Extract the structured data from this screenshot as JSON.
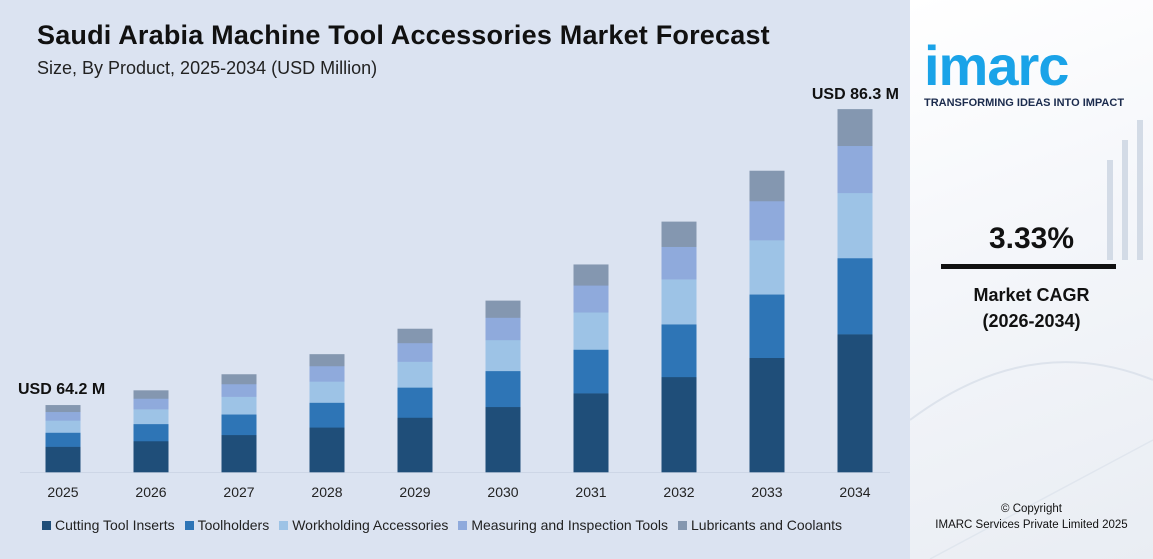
{
  "chart_data": {
    "type": "bar",
    "stacked": true,
    "title": "Saudi Arabia Machine Tool Accessories Market Forecast",
    "subtitle": "Size, By Product, 2025-2034 (USD Million)",
    "categories": [
      "2025",
      "2026",
      "2027",
      "2028",
      "2029",
      "2030",
      "2031",
      "2032",
      "2033",
      "2034"
    ],
    "totals": [
      64.2,
      65.3,
      66.5,
      68.0,
      69.9,
      72.0,
      74.7,
      77.9,
      81.7,
      86.3
    ],
    "series": [
      {
        "name": "Cutting Tool Inserts",
        "color": "#1f4e79",
        "values": [
          24.4,
          24.8,
          25.3,
          25.8,
          26.6,
          27.4,
          28.4,
          29.6,
          31.0,
          32.8
        ]
      },
      {
        "name": "Toolholders",
        "color": "#2e75b6",
        "values": [
          13.5,
          13.7,
          14.0,
          14.3,
          14.7,
          15.1,
          15.7,
          16.4,
          17.2,
          18.1
        ]
      },
      {
        "name": "Workholding Accessories",
        "color": "#9dc3e6",
        "values": [
          11.6,
          11.8,
          12.0,
          12.2,
          12.6,
          13.0,
          13.4,
          14.0,
          14.7,
          15.5
        ]
      },
      {
        "name": "Measuring and Inspection Tools",
        "color": "#8faadc",
        "values": [
          8.3,
          8.5,
          8.6,
          8.9,
          9.1,
          9.4,
          9.7,
          10.1,
          10.6,
          11.2
        ]
      },
      {
        "name": "Lubricants and Coolants",
        "color": "#8497b0",
        "values": [
          6.4,
          6.5,
          6.6,
          6.8,
          6.9,
          7.1,
          7.5,
          7.8,
          8.2,
          8.7
        ]
      }
    ],
    "annotations": [
      {
        "category": "2025",
        "text": "USD 64.2 M"
      },
      {
        "category": "2034",
        "text": "USD 86.3 M"
      }
    ],
    "legend": "bottom",
    "grid": false,
    "axis_truncated": true
  },
  "side": {
    "logo": "imarc",
    "tagline": "TRANSFORMING IDEAS INTO IMPACT",
    "cagr_value": "3.33%",
    "cagr_label": "Market CAGR",
    "cagr_period": "(2026-2034)",
    "copyright": "© Copyright",
    "company": "IMARC Services Private Limited 2025"
  }
}
